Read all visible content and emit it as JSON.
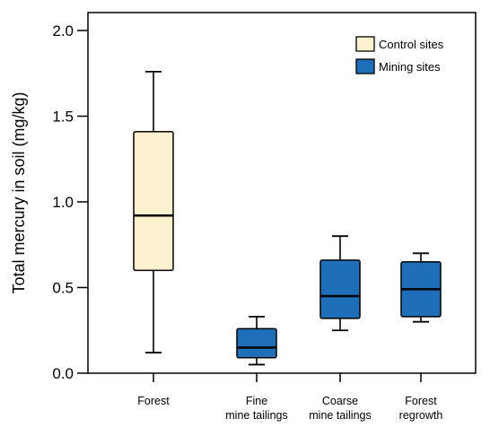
{
  "chart_data": {
    "type": "box",
    "ylabel": "Total mercury in soil (mg/kg)",
    "ylim": [
      0,
      2.0
    ],
    "yticks": [
      "0.0",
      "0.5",
      "1.0",
      "1.5",
      "2.0"
    ],
    "ytick_values": [
      0,
      0.5,
      1.0,
      1.5,
      2.0
    ],
    "grid": false,
    "legend": {
      "position": "top-right",
      "entries": [
        {
          "label": "Control sites",
          "color": "#FBF1CE"
        },
        {
          "label": "Mining sites",
          "color": "#1F6FB8"
        }
      ]
    },
    "categories": [
      {
        "lines": [
          "Forest"
        ],
        "group": "Control sites",
        "min": 0.12,
        "q1": 0.6,
        "median": 0.92,
        "q3": 1.41,
        "max": 1.76
      },
      {
        "lines": [
          "Fine",
          "mine tailings"
        ],
        "group": "Mining sites",
        "min": 0.05,
        "q1": 0.09,
        "median": 0.15,
        "q3": 0.26,
        "max": 0.33
      },
      {
        "lines": [
          "Coarse",
          "mine tailings"
        ],
        "group": "Mining sites",
        "min": 0.25,
        "q1": 0.32,
        "median": 0.45,
        "q3": 0.66,
        "max": 0.8
      },
      {
        "lines": [
          "Forest",
          "regrowth"
        ],
        "group": "Mining sites",
        "min": 0.3,
        "q1": 0.33,
        "median": 0.49,
        "q3": 0.65,
        "max": 0.7
      }
    ]
  }
}
